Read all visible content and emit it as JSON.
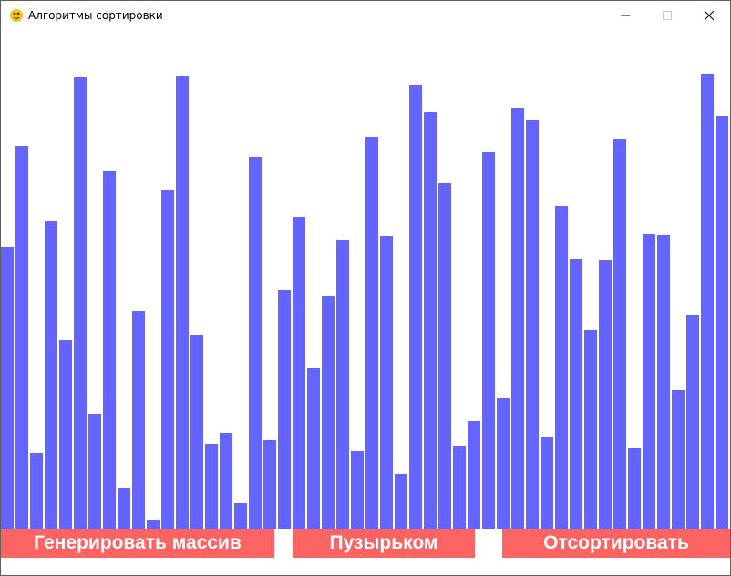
{
  "window": {
    "title": "Алгоритмы сортировки",
    "icon": "pygame-snake-icon",
    "controls": [
      "minimize-icon",
      "maximize-icon",
      "close-icon"
    ]
  },
  "buttons": {
    "generate_label": "Генерировать массив",
    "bubble_label": "Пузырьком",
    "sort_label": "Отсортировать"
  },
  "colors": {
    "bar": "#6464ff",
    "button": "#fc6363",
    "button_text": "#ffffff",
    "background": "#ffffff"
  },
  "array": {
    "values": [
      309,
      420,
      83,
      337,
      207,
      495,
      126,
      392,
      45,
      239,
      9,
      372,
      497,
      212,
      93,
      105,
      28,
      408,
      97,
      262,
      342,
      176,
      255,
      317,
      85,
      430,
      321,
      60,
      487,
      457,
      379,
      91,
      118,
      413,
      143,
      462,
      448,
      100,
      354,
      296,
      218,
      295,
      427,
      88,
      323,
      322,
      152,
      234,
      499,
      453,
      411
    ],
    "max": 500
  }
}
